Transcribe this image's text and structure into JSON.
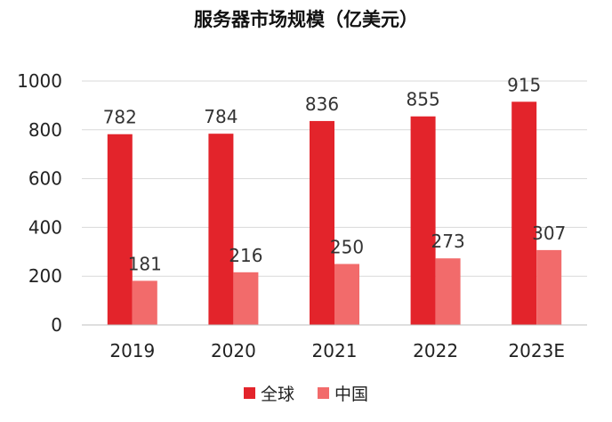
{
  "chart_data": {
    "type": "bar",
    "title": "服务器市场规模（亿美元）",
    "categories": [
      "2019",
      "2020",
      "2021",
      "2022",
      "2023E"
    ],
    "series": [
      {
        "name": "全球",
        "values": [
          782,
          784,
          836,
          855,
          915
        ],
        "color": "#e3242b"
      },
      {
        "name": "中国",
        "values": [
          181,
          216,
          250,
          273,
          307
        ],
        "color": "#f26b6b"
      }
    ],
    "ylim": [
      0,
      1000
    ],
    "yticks": [
      "0",
      "200",
      "400",
      "600",
      "800",
      "1000"
    ],
    "grid": true,
    "legend_position": "bottom"
  }
}
